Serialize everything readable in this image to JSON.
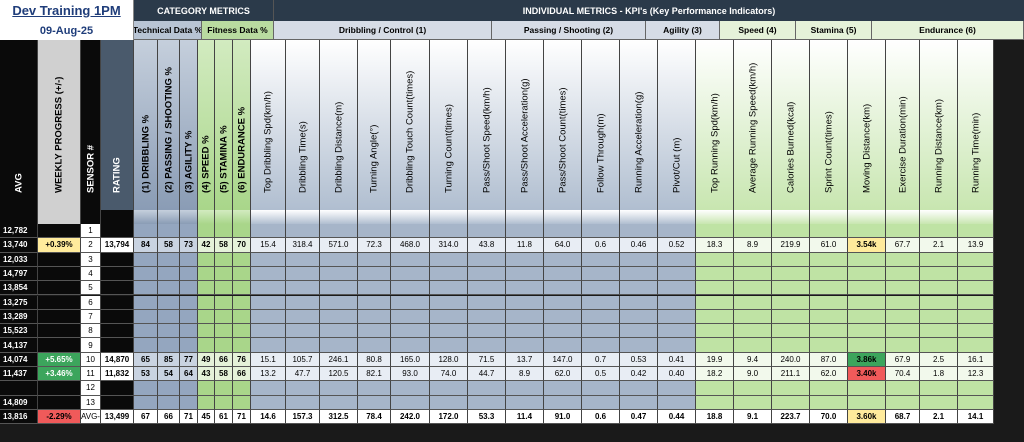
{
  "title": "Dev Training 1PM",
  "date": "09-Aug-25",
  "category_header": "CATEGORY  METRICS",
  "individual_header": "INDIVIDUAL METRICS - KPI's (Key Performance Indicators)",
  "sub_headers": [
    "Technical Data %",
    "Fitness Data %",
    "Dribbling / Control (1)",
    "Passing / Shooting (2)",
    "Agility (3)",
    "Speed (4)",
    "Stamina (5)",
    "Endurance (6)"
  ],
  "columns": [
    "AVG",
    "WEEKLY PROGRESS (+/-)",
    "SENSOR #",
    "RATING",
    "(1) DRIBBLING %",
    "(2) PASSING / SHOOTING %",
    "(3) AGILITY %",
    "(4) SPEED %",
    "(5) STAMINA %",
    "(6) ENDURANCE %",
    "Top Dribbling Spd(km/h)",
    "Dribbling Time(s)",
    "Dribbling Distance(m)",
    "Turning Angle(°)",
    "Dribbling Touch Count(times)",
    "Turning Count(times)",
    "Pass/Shoot Speed(km/h)",
    "Pass/Shoot Acceleration(g)",
    "Pass/Shoot Count(times)",
    "Follow Through(m)",
    "Running Acceleration(g)",
    "Pivot/Cut (m)",
    "Top Running Spd(km/h)",
    "Average Running Speed(km/h)",
    "Calories Burned(kcal)",
    "Sprint Count(times)",
    "Moving Distance(km)",
    "Exercise Duration(min)",
    "Running Distance(km)",
    "Running Time(min)"
  ],
  "rows": [
    [
      "12,782",
      "",
      "1",
      "",
      "",
      "",
      "",
      "",
      "",
      "",
      "",
      "",
      "",
      "",
      "",
      "",
      "",
      "",
      "",
      "",
      "",
      "",
      "",
      "",
      "",
      "",
      "",
      "",
      "",
      ""
    ],
    [
      "13,740",
      "+0.39%",
      "2",
      "13,794",
      "84",
      "58",
      "73",
      "42",
      "58",
      "70",
      "15.4",
      "318.4",
      "571.0",
      "72.3",
      "468.0",
      "314.0",
      "43.8",
      "11.8",
      "64.0",
      "0.6",
      "0.46",
      "0.52",
      "18.3",
      "8.9",
      "219.9",
      "61.0",
      "3.54k",
      "67.7",
      "2.1",
      "13.9"
    ],
    [
      "12,033",
      "",
      "3",
      "",
      "",
      "",
      "",
      "",
      "",
      "",
      "",
      "",
      "",
      "",
      "",
      "",
      "",
      "",
      "",
      "",
      "",
      "",
      "",
      "",
      "",
      "",
      "",
      "",
      "",
      ""
    ],
    [
      "14,797",
      "",
      "4",
      "",
      "",
      "",
      "",
      "",
      "",
      "",
      "",
      "",
      "",
      "",
      "",
      "",
      "",
      "",
      "",
      "",
      "",
      "",
      "",
      "",
      "",
      "",
      "",
      "",
      "",
      ""
    ],
    [
      "13,854",
      "",
      "5",
      "",
      "",
      "",
      "",
      "",
      "",
      "",
      "",
      "",
      "",
      "",
      "",
      "",
      "",
      "",
      "",
      "",
      "",
      "",
      "",
      "",
      "",
      "",
      "",
      "",
      "",
      ""
    ],
    [
      "13,275",
      "",
      "6",
      "",
      "",
      "",
      "",
      "",
      "",
      "",
      "",
      "",
      "",
      "",
      "",
      "",
      "",
      "",
      "",
      "",
      "",
      "",
      "",
      "",
      "",
      "",
      "",
      "",
      "",
      ""
    ],
    [
      "13,289",
      "",
      "7",
      "",
      "",
      "",
      "",
      "",
      "",
      "",
      "",
      "",
      "",
      "",
      "",
      "",
      "",
      "",
      "",
      "",
      "",
      "",
      "",
      "",
      "",
      "",
      "",
      "",
      "",
      ""
    ],
    [
      "15,523",
      "",
      "8",
      "",
      "",
      "",
      "",
      "",
      "",
      "",
      "",
      "",
      "",
      "",
      "",
      "",
      "",
      "",
      "",
      "",
      "",
      "",
      "",
      "",
      "",
      "",
      "",
      "",
      "",
      ""
    ],
    [
      "14,137",
      "",
      "9",
      "",
      "",
      "",
      "",
      "",
      "",
      "",
      "",
      "",
      "",
      "",
      "",
      "",
      "",
      "",
      "",
      "",
      "",
      "",
      "",
      "",
      "",
      "",
      "",
      "",
      "",
      ""
    ],
    [
      "14,074",
      "+5.65%",
      "10",
      "14,870",
      "65",
      "85",
      "77",
      "49",
      "66",
      "76",
      "15.1",
      "105.7",
      "246.1",
      "80.8",
      "165.0",
      "128.0",
      "71.5",
      "13.7",
      "147.0",
      "0.7",
      "0.53",
      "0.41",
      "19.9",
      "9.4",
      "240.0",
      "87.0",
      "3.86k",
      "67.9",
      "2.5",
      "16.1"
    ],
    [
      "11,437",
      "+3.46%",
      "11",
      "11,832",
      "53",
      "54",
      "64",
      "43",
      "58",
      "66",
      "13.2",
      "47.7",
      "120.5",
      "82.1",
      "93.0",
      "74.0",
      "44.7",
      "8.9",
      "62.0",
      "0.5",
      "0.42",
      "0.40",
      "18.2",
      "9.0",
      "211.1",
      "62.0",
      "3.40k",
      "70.4",
      "1.8",
      "12.3"
    ],
    [
      "",
      "",
      "12",
      "",
      "",
      "",
      "",
      "",
      "",
      "",
      "",
      "",
      "",
      "",
      "",
      "",
      "",
      "",
      "",
      "",
      "",
      "",
      "",
      "",
      "",
      "",
      "",
      "",
      "",
      ""
    ],
    [
      "14,809",
      "",
      "13",
      "",
      "",
      "",
      "",
      "",
      "",
      "",
      "",
      "",
      "",
      "",
      "",
      "",
      "",
      "",
      "",
      "",
      "",
      "",
      "",
      "",
      "",
      "",
      "",
      "",
      "",
      ""
    ],
    [
      "13,816",
      "-2.29%",
      "AVG-",
      "13,499",
      "67",
      "66",
      "71",
      "45",
      "61",
      "71",
      "14.6",
      "157.3",
      "312.5",
      "78.4",
      "242.0",
      "172.0",
      "53.3",
      "11.4",
      "91.0",
      "0.6",
      "0.47",
      "0.44",
      "18.8",
      "9.1",
      "223.7",
      "70.0",
      "3.60k",
      "68.7",
      "2.1",
      "14.1"
    ]
  ],
  "colors": {
    "header_dark": "#2b3a4a",
    "dark_cell": "#0a0a0a",
    "grey_cell": "#d0d0d0",
    "blue_light": "#c9d3e1",
    "blue_mid": "#94a6bf",
    "green_light": "#e5f2d9",
    "green_mid": "#a9d68a",
    "yellow_highlight": "#ffeb9c",
    "green_highlight": "#3ca55c",
    "red_highlight": "#f05a5a"
  }
}
